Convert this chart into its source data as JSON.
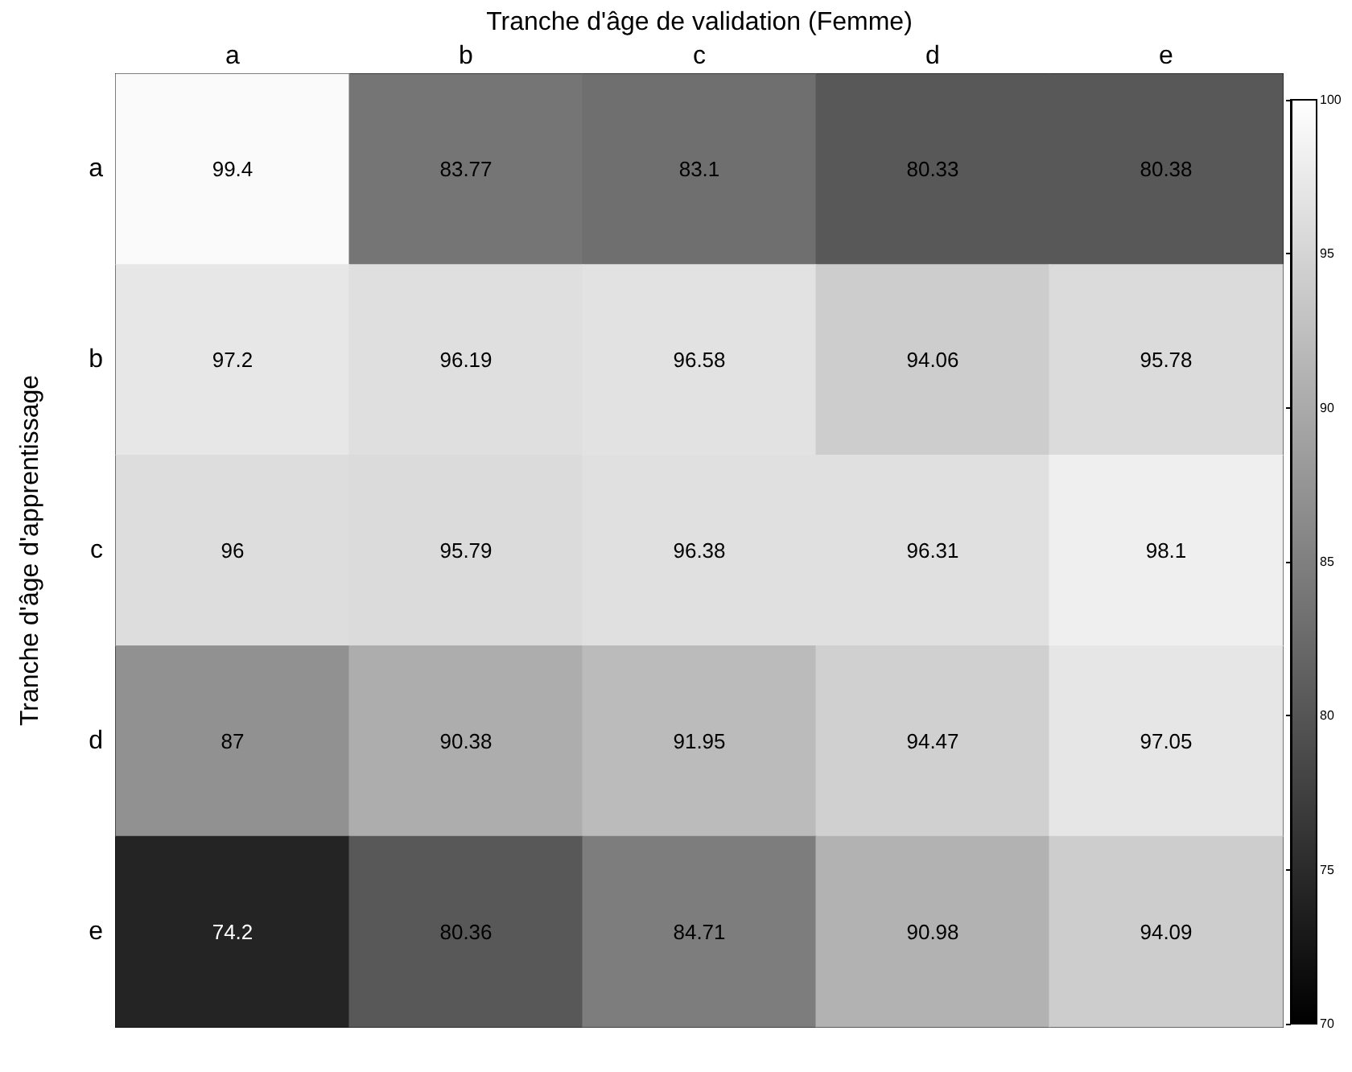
{
  "chart_data": {
    "type": "heatmap",
    "xlabel": "Tranche d'âge de validation (Femme)",
    "ylabel": "Tranche d'âge d'apprentissage",
    "categories": [
      "a",
      "b",
      "c",
      "d",
      "e"
    ],
    "y_categories": [
      "a",
      "b",
      "c",
      "d",
      "e"
    ],
    "cells": [
      [
        99.4,
        83.77,
        83.1,
        80.33,
        80.38
      ],
      [
        97.2,
        96.19,
        96.58,
        94.06,
        95.78
      ],
      [
        96,
        95.79,
        96.38,
        96.31,
        98.1
      ],
      [
        87,
        90.38,
        91.95,
        94.47,
        97.05
      ],
      [
        74.2,
        80.36,
        84.71,
        90.98,
        94.09
      ]
    ],
    "clim": [
      70,
      100
    ],
    "cticks": [
      70,
      75,
      80,
      85,
      90,
      95,
      100
    ],
    "data_labels": true
  }
}
